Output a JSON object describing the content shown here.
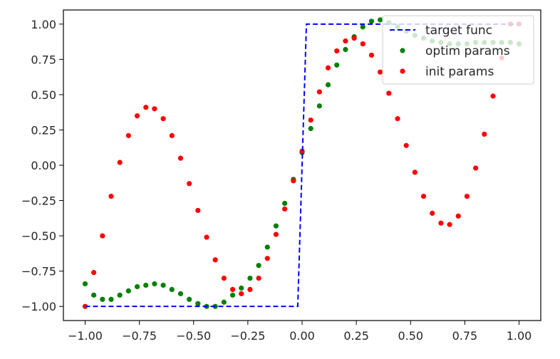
{
  "chart_data": {
    "type": "scatter",
    "xlim": [
      -1.1,
      1.1
    ],
    "ylim": [
      -1.1,
      1.1
    ],
    "x_ticks": [
      -1.0,
      -0.75,
      -0.5,
      -0.25,
      0.0,
      0.25,
      0.5,
      0.75,
      1.0
    ],
    "x_tick_labels": [
      "−1.00",
      "−0.75",
      "−0.50",
      "−0.25",
      "0.00",
      "0.25",
      "0.50",
      "0.75",
      "1.00"
    ],
    "y_ticks": [
      -1.0,
      -0.75,
      -0.5,
      -0.25,
      0.0,
      0.25,
      0.5,
      0.75,
      1.0
    ],
    "y_tick_labels": [
      "−1.00",
      "−0.75",
      "−0.50",
      "−0.25",
      "0.00",
      "0.25",
      "0.50",
      "0.75",
      "1.00"
    ],
    "grid": false,
    "legend_position": "top-right",
    "series": [
      {
        "name": "target func",
        "style": "dashed-line",
        "color": "#0000ff",
        "x": [
          -1.0,
          -0.02,
          0.02,
          1.0
        ],
        "y": [
          -1.0,
          -1.0,
          1.0,
          1.0
        ]
      },
      {
        "name": "optim params",
        "style": "points",
        "color": "#008000",
        "x": [
          -1.0,
          -0.96,
          -0.92,
          -0.88,
          -0.84,
          -0.8,
          -0.76,
          -0.72,
          -0.68,
          -0.64,
          -0.6,
          -0.56,
          -0.52,
          -0.48,
          -0.44,
          -0.4,
          -0.36,
          -0.32,
          -0.28,
          -0.24,
          -0.2,
          -0.16,
          -0.12,
          -0.08,
          -0.04,
          0.0,
          0.04,
          0.08,
          0.12,
          0.16,
          0.2,
          0.24,
          0.28,
          0.32,
          0.36,
          0.4,
          0.44,
          0.48,
          0.52,
          0.56,
          0.6,
          0.64,
          0.68,
          0.72,
          0.76,
          0.8,
          0.84,
          0.88,
          0.92,
          0.96,
          1.0
        ],
        "y": [
          -0.84,
          -0.92,
          -0.95,
          -0.95,
          -0.92,
          -0.89,
          -0.86,
          -0.85,
          -0.84,
          -0.85,
          -0.88,
          -0.91,
          -0.95,
          -0.98,
          -1.0,
          -1.0,
          -0.97,
          -0.92,
          -0.87,
          -0.8,
          -0.71,
          -0.58,
          -0.43,
          -0.27,
          -0.1,
          0.09,
          0.26,
          0.42,
          0.57,
          0.71,
          0.82,
          0.91,
          0.98,
          1.02,
          1.03,
          1.01,
          0.98,
          0.95,
          0.92,
          0.9,
          0.88,
          0.87,
          0.86,
          0.86,
          0.86,
          0.87,
          0.87,
          0.87,
          0.87,
          0.87,
          0.86
        ]
      },
      {
        "name": "init params",
        "style": "points",
        "color": "#ff0000",
        "x": [
          -1.0,
          -0.96,
          -0.92,
          -0.88,
          -0.84,
          -0.8,
          -0.76,
          -0.72,
          -0.68,
          -0.64,
          -0.6,
          -0.56,
          -0.52,
          -0.48,
          -0.44,
          -0.4,
          -0.36,
          -0.32,
          -0.28,
          -0.24,
          -0.2,
          -0.16,
          -0.12,
          -0.08,
          -0.04,
          0.0,
          0.04,
          0.08,
          0.12,
          0.16,
          0.2,
          0.24,
          0.28,
          0.32,
          0.36,
          0.4,
          0.44,
          0.48,
          0.52,
          0.56,
          0.6,
          0.64,
          0.68,
          0.72,
          0.76,
          0.8,
          0.84,
          0.88,
          0.92,
          0.96,
          1.0
        ],
        "y": [
          -1.0,
          -0.76,
          -0.5,
          -0.22,
          0.02,
          0.21,
          0.35,
          0.41,
          0.4,
          0.33,
          0.21,
          0.05,
          -0.13,
          -0.32,
          -0.51,
          -0.67,
          -0.8,
          -0.88,
          -0.91,
          -0.88,
          -0.8,
          -0.66,
          -0.49,
          -0.31,
          -0.11,
          0.1,
          0.32,
          0.52,
          0.69,
          0.81,
          0.88,
          0.9,
          0.86,
          0.78,
          0.66,
          0.51,
          0.33,
          0.14,
          -0.05,
          -0.22,
          -0.34,
          -0.41,
          -0.42,
          -0.36,
          -0.22,
          -0.02,
          0.22,
          0.49,
          0.76,
          1.0,
          1.0
        ]
      }
    ]
  }
}
